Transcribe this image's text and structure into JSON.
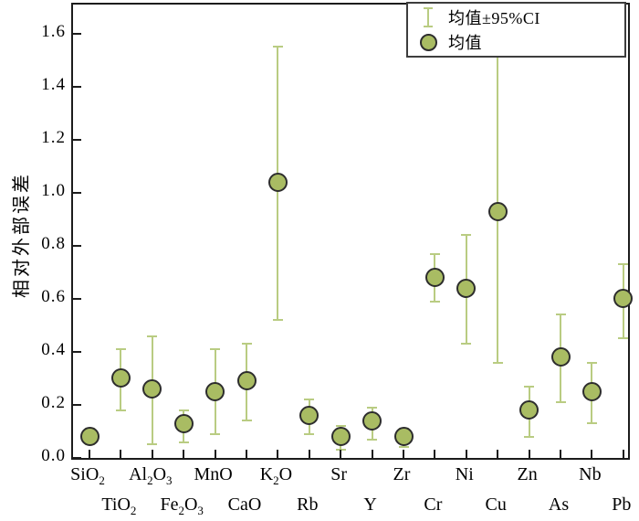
{
  "chart_data": {
    "type": "scatter",
    "subtype": "mean-with-95ci-errorbars",
    "title": "",
    "xlabel": "",
    "ylabel": "相对外部误差",
    "ylim": [
      0.0,
      1.71
    ],
    "yticks": [
      0.0,
      0.2,
      0.4,
      0.6,
      0.8,
      1.0,
      1.2,
      1.4,
      1.6
    ],
    "grid": false,
    "legend_position": "top-right",
    "categories": [
      "SiO₂",
      "TiO₂",
      "Al₂O₃",
      "Fe₂O₃",
      "MnO",
      "CaO",
      "K₂O",
      "Rb",
      "Sr",
      "Y",
      "Zr",
      "Cr",
      "Ni",
      "Cu",
      "Zn",
      "As",
      "Nb",
      "Pb"
    ],
    "series": [
      {
        "name": "均值",
        "marker": "circle",
        "values": [
          0.08,
          0.3,
          0.26,
          0.13,
          0.25,
          0.29,
          1.04,
          0.16,
          0.08,
          0.14,
          0.08,
          0.68,
          0.64,
          0.93,
          0.18,
          0.38,
          0.25,
          0.6
        ]
      },
      {
        "name": "均值±95%CI",
        "marker": "error-bar",
        "ci_low": [
          0.05,
          0.18,
          0.05,
          0.06,
          0.09,
          0.14,
          0.52,
          0.09,
          0.03,
          0.07,
          0.04,
          0.59,
          0.43,
          0.36,
          0.08,
          0.21,
          0.13,
          0.45
        ],
        "ci_high": [
          0.11,
          0.41,
          0.46,
          0.18,
          0.41,
          0.43,
          1.55,
          0.22,
          0.12,
          0.19,
          0.11,
          0.77,
          0.84,
          1.52,
          0.27,
          0.54,
          0.36,
          0.73
        ]
      }
    ]
  },
  "legend": {
    "entries": [
      {
        "label": "均值±95%CI",
        "icon": "error-bar-icon"
      },
      {
        "label": "均值",
        "icon": "circle-marker-icon"
      }
    ]
  },
  "colors": {
    "marker_fill": "#a9bc63",
    "marker_outline": "#2d2d2d",
    "whisker": "#b9cc82",
    "axis": "#1c1c1c",
    "background": "#ffffff"
  }
}
